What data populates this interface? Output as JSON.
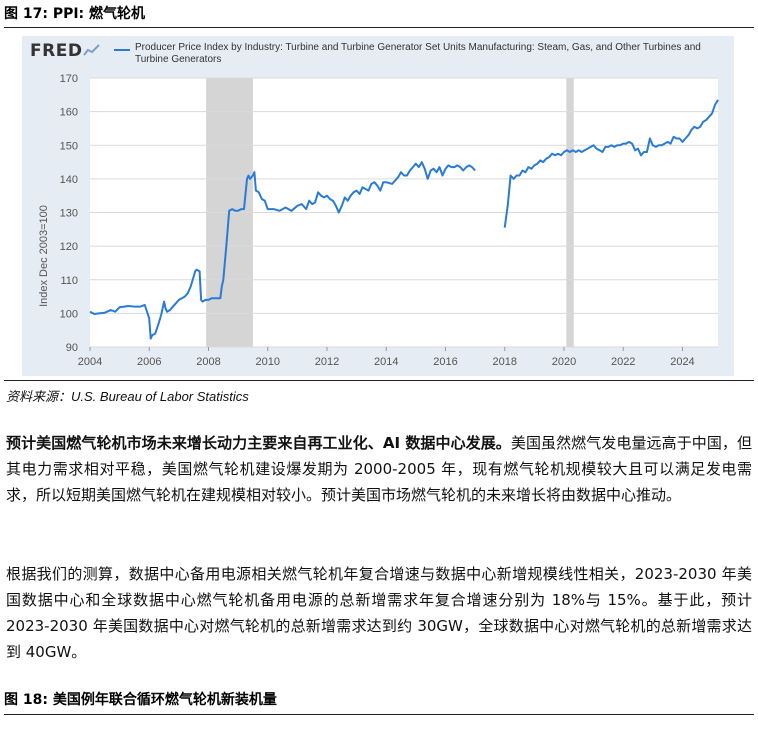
{
  "figure17": {
    "title": "图 17: PPI: 燃气轮机"
  },
  "brand": {
    "logo_text": "FRED"
  },
  "chart_data": {
    "type": "line",
    "title": "",
    "legend": "Producer Price Index by Industry: Turbine and Turbine Generator Set Units Manufacturing: Steam, Gas, and Other Turbines and Turbine Generators",
    "ylabel": "Index Dec 2003=100",
    "xlabel": "",
    "xlim": [
      2004.0,
      2025.2
    ],
    "ylim": [
      90,
      170
    ],
    "yticks": [
      90,
      100,
      110,
      120,
      130,
      140,
      150,
      160,
      170
    ],
    "xticks": [
      "2004",
      "2006",
      "2008",
      "2010",
      "2012",
      "2014",
      "2016",
      "2018",
      "2020",
      "2022",
      "2024"
    ],
    "recessions": [
      [
        2007.92,
        2009.5
      ],
      [
        2020.08,
        2020.33
      ]
    ],
    "series_color": "#2a7bd5",
    "segments": [
      {
        "x": [
          2004.0,
          2004.15,
          2004.3,
          2004.5,
          2004.7,
          2004.85,
          2005.0,
          2005.15,
          2005.3,
          2005.5,
          2005.7,
          2005.85,
          2006.0,
          2006.05,
          2006.1,
          2006.2,
          2006.3,
          2006.4,
          2006.5,
          2006.55,
          2006.6,
          2006.7,
          2006.8,
          2006.9,
          2007.0,
          2007.1,
          2007.2,
          2007.3,
          2007.4,
          2007.5,
          2007.55,
          2007.6,
          2007.7,
          2007.75,
          2007.8,
          2007.9,
          2008.0,
          2008.1,
          2008.2,
          2008.3,
          2008.4,
          2008.45,
          2008.5,
          2008.6,
          2008.7,
          2008.8,
          2008.9,
          2009.0,
          2009.1,
          2009.2,
          2009.3,
          2009.35,
          2009.4,
          2009.5,
          2009.55,
          2009.6,
          2009.7,
          2009.8,
          2009.9,
          2010.0,
          2010.2,
          2010.4,
          2010.6,
          2010.8,
          2011.0,
          2011.15,
          2011.3,
          2011.4,
          2011.5,
          2011.6,
          2011.7,
          2011.8,
          2011.9,
          2012.0,
          2012.1,
          2012.2,
          2012.3,
          2012.4,
          2012.5,
          2012.6,
          2012.7,
          2012.8,
          2012.9,
          2013.0,
          2013.1,
          2013.2,
          2013.3,
          2013.4,
          2013.5,
          2013.6,
          2013.7,
          2013.8,
          2013.9,
          2014.0,
          2014.2,
          2014.4,
          2014.5,
          2014.6,
          2014.7,
          2014.8,
          2014.9,
          2015.0,
          2015.1,
          2015.2,
          2015.3,
          2015.4,
          2015.5,
          2015.6,
          2015.7,
          2015.8,
          2015.9,
          2016.0,
          2016.1,
          2016.2,
          2016.3,
          2016.4,
          2016.5,
          2016.6,
          2016.7,
          2016.8,
          2016.9,
          2017.0
        ],
        "y": [
          100.5,
          99.8,
          100.0,
          100.2,
          101.0,
          100.5,
          101.8,
          102.0,
          102.2,
          102.0,
          102.0,
          102.5,
          98.5,
          92.5,
          93.5,
          94.0,
          96.5,
          99.5,
          103.5,
          101.5,
          100.5,
          101.0,
          102.0,
          103.0,
          104.0,
          104.5,
          105.0,
          106.0,
          108.0,
          111.0,
          112.5,
          113.0,
          112.5,
          104.0,
          103.5,
          104.0,
          104.0,
          104.5,
          104.5,
          104.5,
          104.5,
          108.0,
          110.0,
          120.0,
          130.5,
          131.0,
          130.5,
          130.5,
          131.0,
          131.0,
          140.0,
          141.0,
          140.0,
          141.0,
          142.0,
          136.5,
          136.0,
          134.0,
          133.5,
          131.0,
          131.0,
          130.5,
          131.5,
          130.5,
          132.0,
          132.5,
          131.0,
          133.5,
          132.5,
          133.0,
          136.0,
          135.0,
          134.5,
          135.0,
          134.0,
          133.5,
          132.0,
          130.0,
          132.0,
          134.5,
          133.5,
          135.0,
          136.0,
          136.5,
          135.5,
          137.5,
          137.0,
          136.5,
          138.5,
          139.0,
          138.0,
          136.5,
          139.0,
          139.0,
          138.5,
          140.5,
          142.0,
          141.0,
          141.0,
          142.5,
          143.5,
          144.5,
          143.5,
          145.0,
          143.0,
          140.0,
          142.5,
          143.0,
          142.0,
          143.5,
          141.0,
          143.0,
          144.0,
          143.5,
          143.5,
          144.0,
          143.5,
          142.5,
          143.5,
          144.0,
          143.5,
          142.5
        ]
      },
      {
        "x": [
          2018.0,
          2018.1,
          2018.2,
          2018.3,
          2018.4,
          2018.5,
          2018.6,
          2018.7,
          2018.8,
          2018.9,
          2019.0,
          2019.1,
          2019.2,
          2019.3,
          2019.4,
          2019.5,
          2019.6,
          2019.7,
          2019.8,
          2019.9,
          2020.0,
          2020.1,
          2020.2,
          2020.3,
          2020.4,
          2020.5,
          2020.6,
          2020.7,
          2020.8,
          2020.9,
          2021.0,
          2021.1,
          2021.2,
          2021.3,
          2021.4,
          2021.5,
          2021.6,
          2021.7,
          2021.8,
          2021.9,
          2022.0,
          2022.1,
          2022.2,
          2022.3,
          2022.4,
          2022.5,
          2022.6,
          2022.7,
          2022.8,
          2022.9,
          2023.0,
          2023.1,
          2023.2,
          2023.3,
          2023.4,
          2023.5,
          2023.6,
          2023.7,
          2023.8,
          2023.9,
          2024.0,
          2024.1,
          2024.2,
          2024.3,
          2024.4,
          2024.5,
          2024.6,
          2024.7,
          2024.8,
          2024.9,
          2025.0,
          2025.1,
          2025.2
        ],
        "y": [
          125.5,
          132.0,
          141.0,
          140.0,
          141.0,
          141.0,
          142.5,
          142.0,
          143.5,
          143.0,
          144.0,
          144.5,
          145.5,
          145.0,
          146.0,
          146.5,
          147.5,
          147.0,
          147.5,
          147.0,
          148.0,
          148.5,
          148.0,
          148.5,
          148.0,
          148.5,
          148.0,
          148.5,
          149.0,
          149.5,
          150.0,
          149.0,
          148.5,
          148.0,
          149.5,
          149.5,
          150.0,
          149.5,
          150.0,
          150.0,
          150.5,
          150.5,
          151.0,
          150.5,
          148.5,
          149.0,
          147.0,
          148.0,
          148.0,
          152.0,
          150.0,
          149.5,
          150.0,
          150.0,
          150.5,
          151.0,
          150.5,
          152.5,
          152.0,
          152.0,
          151.0,
          152.0,
          153.0,
          154.5,
          155.5,
          155.0,
          155.5,
          157.0,
          157.5,
          158.5,
          159.5,
          162.0,
          163.5
        ]
      }
    ]
  },
  "source": "资料来源：U.S. Bureau of Labor Statistics",
  "para1": {
    "bold": "预计美国燃气轮机市场未来增长动力主要来自再工业化、AI 数据中心发展。",
    "text": "美国虽然燃气发电量远高于中国，但其电力需求相对平稳，美国燃气轮机建设爆发期为 2000-2005 年，现有燃气轮机规模较大且可以满足发电需求，所以短期美国燃气轮机在建规模相对较小。预计美国市场燃气轮机的未来增长将由数据中心推动。"
  },
  "para2": {
    "text": "根据我们的测算，数据中心备用电源相关燃气轮机年复合增速与数据中心新增规模线性相关，2023-2030 年美国数据中心和全球数据中心燃气轮机备用电源的总新增需求年复合增速分别为 18%与 15%。基于此，预计 2023-2030 年美国数据中心对燃气轮机的总新增需求达到约 30GW，全球数据中心对燃气轮机的总新增需求达到 40GW。"
  },
  "figure18": {
    "title": "图 18: 美国例年联合循环燃气轮机新装机量"
  }
}
